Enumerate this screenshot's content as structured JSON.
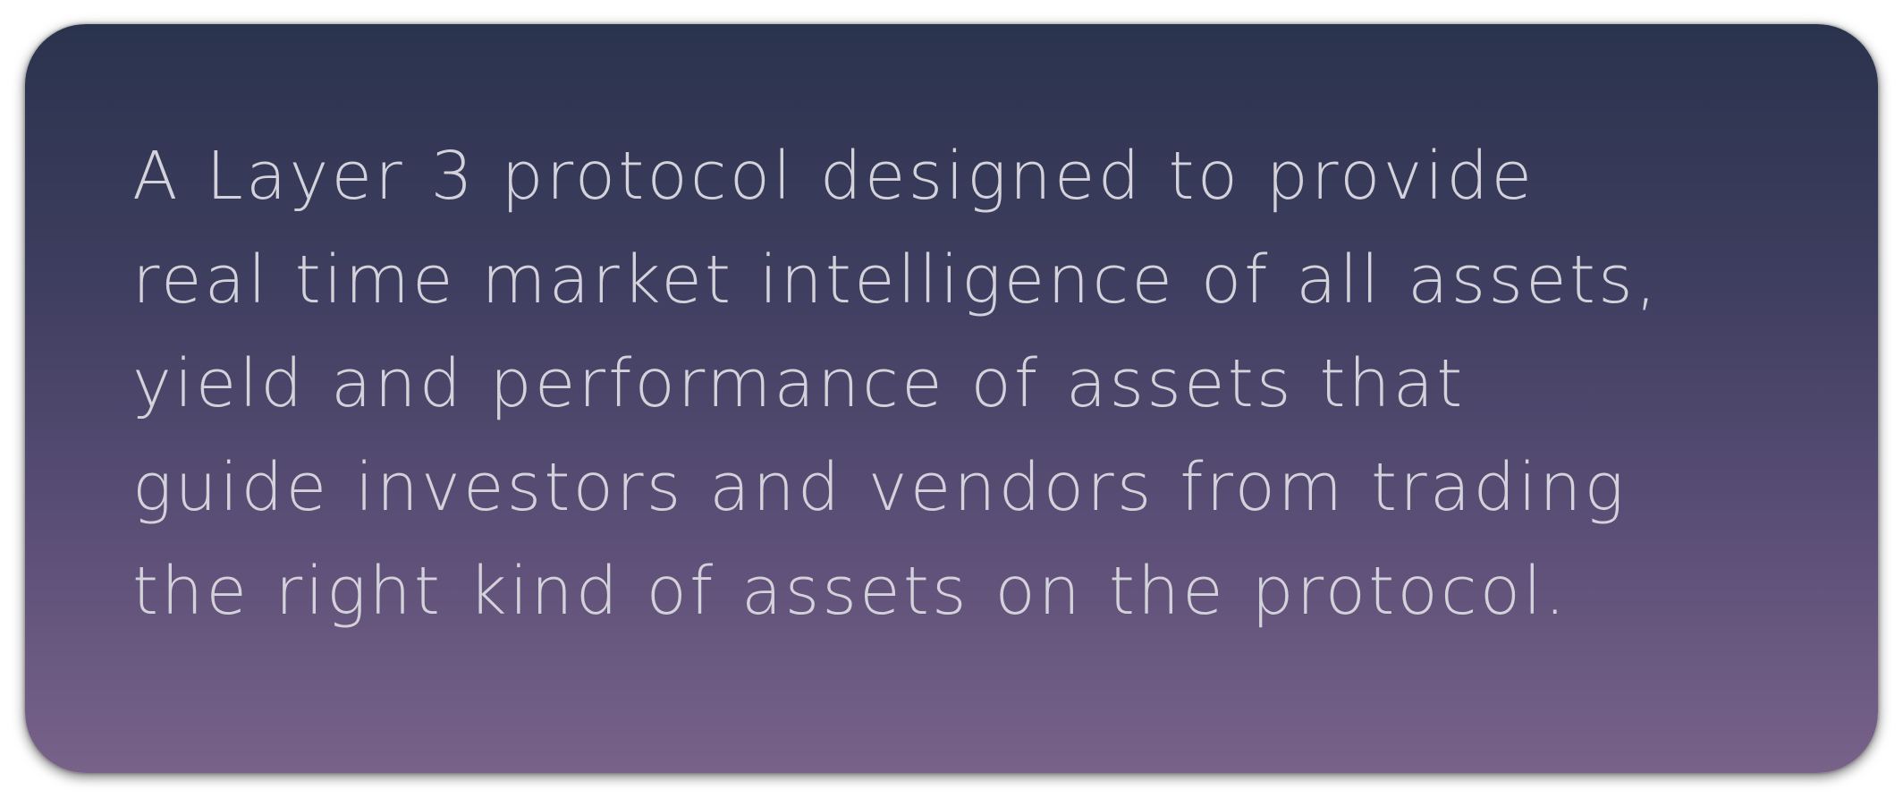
{
  "card": {
    "lines": [
      "A Layer 3 protocol designed to provide",
      "real time market intelligence of all assets,",
      "yield and performance of assets that",
      "guide investors and vendors from trading",
      "the right kind of assets on the protocol."
    ],
    "colors": {
      "gradient_top": "#2a334d",
      "gradient_bottom": "#786289",
      "text": "#d3d1d9",
      "background": "#ffffff"
    }
  }
}
